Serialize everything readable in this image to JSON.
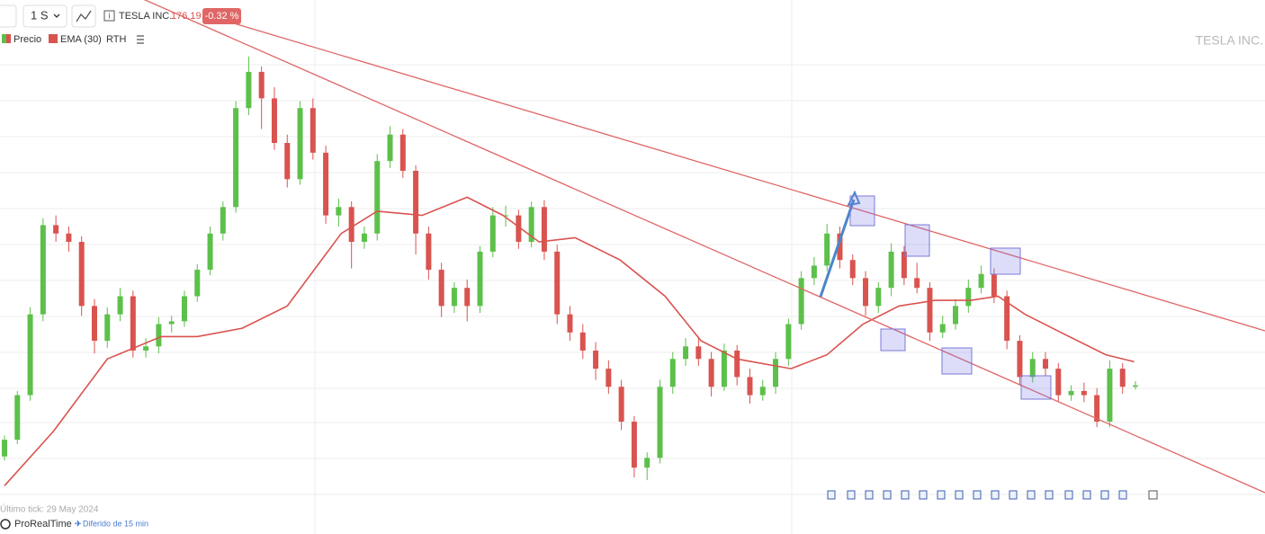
{
  "toolbar": {
    "timeframe": "1 S",
    "instrument": "TESLA INC.",
    "last_price": "176.19",
    "change": "-0.32 %"
  },
  "legend_extra": "RTH",
  "watermark": "TESLA INC.",
  "footer": {
    "last_tick": "Último tick: 29 May 2024",
    "brand": "ProRealTime",
    "delay": "Diferido de 15 min"
  },
  "chart_data": {
    "type": "candlestick",
    "ylim": [
      90,
      450
    ],
    "series": [
      {
        "name": "Precio",
        "up_color": "#5cc04a",
        "down_color": "#d9534f",
        "values": [
          [
            125,
            140,
            122,
            137
          ],
          [
            137,
            172,
            134,
            169
          ],
          [
            169,
            232,
            165,
            227
          ],
          [
            227,
            296,
            222,
            291
          ],
          [
            291,
            298,
            279,
            285
          ],
          [
            285,
            290,
            272,
            279
          ],
          [
            279,
            283,
            226,
            233
          ],
          [
            233,
            238,
            199,
            208
          ],
          [
            208,
            232,
            203,
            227
          ],
          [
            227,
            246,
            222,
            240
          ],
          [
            240,
            244,
            196,
            201
          ],
          [
            201,
            210,
            196,
            204
          ],
          [
            204,
            225,
            199,
            220
          ],
          [
            220,
            226,
            214,
            222
          ],
          [
            222,
            244,
            218,
            240
          ],
          [
            240,
            263,
            236,
            259
          ],
          [
            259,
            290,
            255,
            285
          ],
          [
            285,
            308,
            280,
            304
          ],
          [
            304,
            380,
            300,
            375
          ],
          [
            375,
            412,
            370,
            401
          ],
          [
            401,
            405,
            360,
            382
          ],
          [
            382,
            390,
            345,
            350
          ],
          [
            350,
            356,
            318,
            324
          ],
          [
            324,
            380,
            320,
            375
          ],
          [
            375,
            382,
            338,
            343
          ],
          [
            343,
            348,
            292,
            298
          ],
          [
            298,
            310,
            290,
            304
          ],
          [
            304,
            308,
            260,
            279
          ],
          [
            279,
            290,
            274,
            285
          ],
          [
            285,
            342,
            280,
            337
          ],
          [
            337,
            362,
            332,
            356
          ],
          [
            356,
            360,
            325,
            330
          ],
          [
            330,
            334,
            270,
            285
          ],
          [
            285,
            290,
            252,
            259
          ],
          [
            259,
            264,
            225,
            233
          ],
          [
            233,
            250,
            228,
            246
          ],
          [
            246,
            252,
            222,
            233
          ],
          [
            233,
            276,
            228,
            272
          ],
          [
            272,
            304,
            268,
            298
          ],
          [
            298,
            305,
            290,
            298
          ],
          [
            298,
            302,
            274,
            279
          ],
          [
            279,
            308,
            275,
            304
          ],
          [
            304,
            309,
            266,
            272
          ],
          [
            272,
            277,
            220,
            227
          ],
          [
            227,
            233,
            208,
            214
          ],
          [
            214,
            220,
            195,
            201
          ],
          [
            201,
            207,
            180,
            188
          ],
          [
            188,
            194,
            170,
            175
          ],
          [
            175,
            180,
            144,
            150
          ],
          [
            150,
            154,
            110,
            117
          ],
          [
            117,
            128,
            108,
            124
          ],
          [
            124,
            180,
            120,
            175
          ],
          [
            175,
            200,
            170,
            195
          ],
          [
            195,
            210,
            190,
            204
          ],
          [
            204,
            210,
            190,
            195
          ],
          [
            195,
            200,
            168,
            175
          ],
          [
            175,
            206,
            172,
            201
          ],
          [
            201,
            205,
            176,
            182
          ],
          [
            182,
            188,
            163,
            169
          ],
          [
            169,
            180,
            165,
            175
          ],
          [
            175,
            200,
            170,
            195
          ],
          [
            195,
            224,
            190,
            220
          ],
          [
            220,
            258,
            216,
            253
          ],
          [
            253,
            268,
            248,
            262
          ],
          [
            262,
            292,
            258,
            285
          ],
          [
            285,
            290,
            260,
            266
          ],
          [
            266,
            270,
            248,
            253
          ],
          [
            253,
            258,
            226,
            233
          ],
          [
            233,
            250,
            228,
            246
          ],
          [
            246,
            278,
            240,
            272
          ],
          [
            272,
            276,
            248,
            253
          ],
          [
            253,
            264,
            242,
            246
          ],
          [
            246,
            250,
            208,
            214
          ],
          [
            214,
            226,
            210,
            220
          ],
          [
            220,
            238,
            216,
            233
          ],
          [
            233,
            252,
            228,
            246
          ],
          [
            246,
            262,
            242,
            256
          ],
          [
            256,
            260,
            235,
            240
          ],
          [
            240,
            244,
            202,
            208
          ],
          [
            208,
            212,
            176,
            182
          ],
          [
            182,
            200,
            178,
            195
          ],
          [
            195,
            200,
            183,
            188
          ],
          [
            188,
            192,
            164,
            169
          ],
          [
            169,
            176,
            165,
            172
          ],
          [
            172,
            178,
            164,
            169
          ],
          [
            169,
            174,
            146,
            150
          ],
          [
            150,
            194,
            146,
            188
          ],
          [
            188,
            192,
            170,
            175
          ],
          [
            175,
            179,
            173,
            176
          ]
        ]
      },
      {
        "name": "EMA (30)",
        "color": "#d9534f",
        "x": [
          0,
          3.8,
          8,
          12.2,
          15,
          18.5,
          22,
          24.1,
          26.2,
          29,
          32.5,
          36,
          38.8,
          41.6,
          44.4,
          47.9,
          51.4,
          54.2,
          57,
          61.2,
          64,
          66.8,
          69.6,
          72.4,
          75.2,
          77.3,
          79.4,
          82.2,
          85.7,
          87.9
        ],
        "values": [
          104,
          143,
          195,
          211,
          211,
          217,
          233,
          259,
          285,
          301,
          298,
          311,
          298,
          279,
          282,
          266,
          240,
          208,
          195,
          188,
          198,
          220,
          233,
          237,
          237,
          240,
          227,
          214,
          198,
          193
        ]
      }
    ]
  }
}
